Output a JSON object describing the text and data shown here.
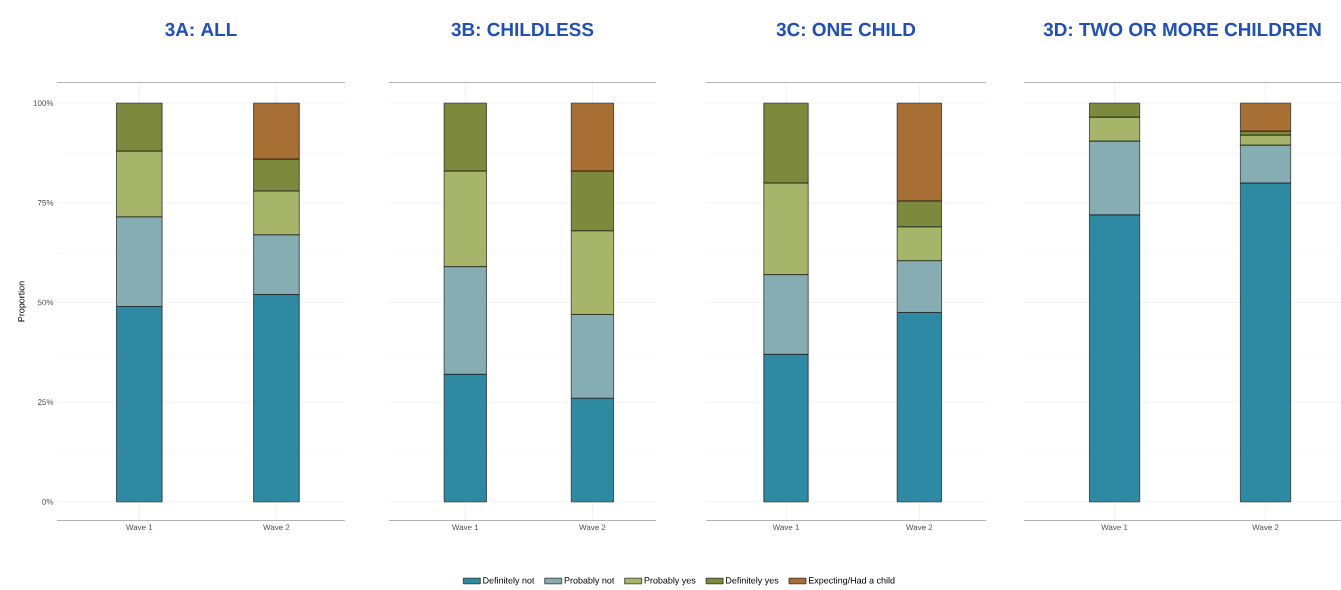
{
  "chart_data": [
    {
      "type": "bar",
      "stacked": true,
      "title": "3A: ALL",
      "ylabel": "Proportion",
      "categories": [
        "Wave 1",
        "Wave 2"
      ],
      "ylim": [
        -4.8,
        105.3
      ],
      "yticks": [
        {
          "value": 0,
          "label": "0%"
        },
        {
          "value": 25,
          "label": "25%"
        },
        {
          "value": 50,
          "label": "50%"
        },
        {
          "value": 75,
          "label": "75%"
        },
        {
          "value": 100,
          "label": "100%"
        }
      ],
      "grid": true,
      "legend": "bottom",
      "series": [
        {
          "name": "Definitely not",
          "color": "#2e8aa3",
          "values": [
            49,
            52
          ]
        },
        {
          "name": "Probably not",
          "color": "#86adb2",
          "values": [
            22.5,
            15
          ]
        },
        {
          "name": "Probably yes",
          "color": "#a7b56b",
          "values": [
            16.5,
            11
          ]
        },
        {
          "name": "Definitely yes",
          "color": "#7d8a3e",
          "values": [
            12,
            8
          ]
        },
        {
          "name": "Expecting/Had a child",
          "color": "#a86f35",
          "values": [
            null,
            14
          ]
        }
      ]
    },
    {
      "type": "bar",
      "stacked": true,
      "title": "3B: CHILDLESS",
      "categories": [
        "Wave 1",
        "Wave 2"
      ],
      "ylim": [
        -4.8,
        105.3
      ],
      "yticks": [
        0,
        25,
        50,
        75,
        100
      ],
      "grid": true,
      "tick_labels": "x",
      "series": [
        {
          "color": "#2e8aa3",
          "values": [
            32,
            26
          ]
        },
        {
          "color": "#86adb2",
          "values": [
            27,
            21
          ]
        },
        {
          "color": "#a7b56b",
          "values": [
            24,
            21
          ]
        },
        {
          "color": "#7d8a3e",
          "values": [
            17,
            15
          ]
        },
        {
          "color": "#a86f35",
          "values": [
            null,
            17
          ]
        }
      ]
    },
    {
      "type": "bar",
      "stacked": true,
      "title": "3C: ONE CHILD",
      "categories": [
        "Wave 1",
        "Wave 2"
      ],
      "ylim": [
        -4.8,
        105.3
      ],
      "yticks": [
        0,
        25,
        50,
        75,
        100
      ],
      "grid": true,
      "tick_labels": "x",
      "series": [
        {
          "color": "#2e8aa3",
          "values": [
            37,
            47.5
          ]
        },
        {
          "color": "#86adb2",
          "values": [
            20,
            13
          ]
        },
        {
          "color": "#a7b56b",
          "values": [
            23,
            8.5
          ]
        },
        {
          "color": "#7d8a3e",
          "values": [
            20,
            6.5
          ]
        },
        {
          "color": "#a86f35",
          "values": [
            null,
            24.5
          ]
        }
      ]
    },
    {
      "type": "bar",
      "stacked": true,
      "title": "3D: TWO OR MORE CHILDREN",
      "categories": [
        "Wave 1",
        "Wave 2"
      ],
      "ylim": [
        -4.8,
        105.3
      ],
      "yticks": [
        0,
        25,
        50,
        75,
        100
      ],
      "grid": true,
      "tick_labels": "x",
      "series": [
        {
          "color": "#2e8aa3",
          "values": [
            72,
            80
          ]
        },
        {
          "color": "#86adb2",
          "values": [
            18.5,
            9.5
          ]
        },
        {
          "color": "#a7b56b",
          "values": [
            6,
            2.5
          ]
        },
        {
          "color": "#7d8a3e",
          "values": [
            3.5,
            1
          ]
        },
        {
          "color": "#a86f35",
          "values": [
            null,
            7
          ]
        }
      ]
    }
  ]
}
